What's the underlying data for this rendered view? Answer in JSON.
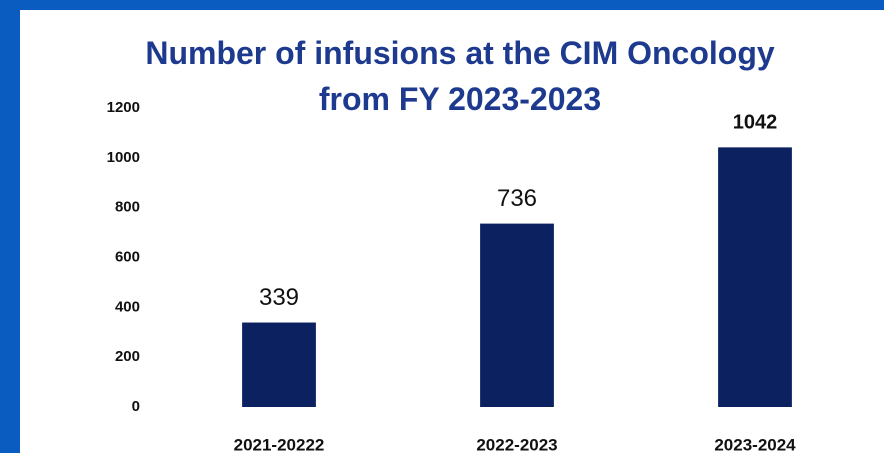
{
  "chart_data": {
    "type": "bar",
    "title": "Number of infusions at the CIM Oncology from FY 2023-2023",
    "categories": [
      "2021-20222",
      "2022-2023",
      "2023-2024"
    ],
    "values": [
      339,
      736,
      1042
    ],
    "color": "#0b2160",
    "ylim": [
      0,
      1200
    ],
    "yticks": [
      0,
      200,
      400,
      600,
      800,
      1000,
      1200
    ],
    "grid": false
  }
}
